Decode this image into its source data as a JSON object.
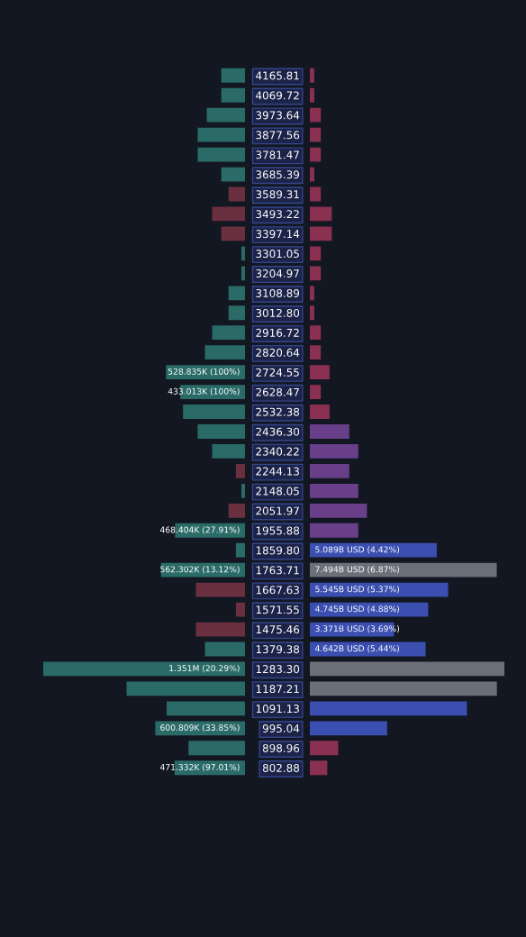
{
  "chart_data": [
    {
      "type": "bar",
      "orientation": "horizontal",
      "tick_labels": false,
      "categories": [
        "4165.81",
        "4069.72",
        "3973.64",
        "3877.56",
        "3781.47",
        "3685.39",
        "3589.31",
        "3493.22",
        "3397.14",
        "3301.05",
        "3204.97",
        "3108.89",
        "3012.80",
        "2916.72",
        "2820.64",
        "2724.55",
        "2628.47",
        "2532.38",
        "2436.30",
        "2340.22",
        "2244.13",
        "2148.05",
        "2051.97",
        "1955.88",
        "1859.80",
        "1763.71",
        "1667.63",
        "1571.55",
        "1475.46",
        "1379.38",
        "1283.30",
        "1187.21",
        "1091.13",
        "995.04",
        "898.96",
        "802.88"
      ],
      "values": [
        159000,
        159000,
        256000,
        317000,
        317000,
        159000,
        110000,
        220000,
        159000,
        24000,
        24000,
        110000,
        110000,
        220000,
        268000,
        528835,
        433013,
        415000,
        317000,
        220000,
        61000,
        24000,
        110000,
        468404,
        61000,
        562302,
        329000,
        61000,
        329000,
        268000,
        1351000,
        793000,
        525000,
        600809,
        378000,
        471332
      ],
      "colors": [
        "#2a6b68",
        "#2a6b68",
        "#2a6b68",
        "#2a6b68",
        "#2a6b68",
        "#2a6b68",
        "#6b3040",
        "#6b3040",
        "#6b3040",
        "#2a6b68",
        "#2a6b68",
        "#2a6b68",
        "#2a6b68",
        "#2a6b68",
        "#2a6b68",
        "#2a6b68",
        "#2a6b68",
        "#2a6b68",
        "#2a6b68",
        "#2a6b68",
        "#6b3040",
        "#2a6b68",
        "#6b3040",
        "#2a6b68",
        "#2a6b68",
        "#2a6b68",
        "#6b3040",
        "#6b3040",
        "#6b3040",
        "#2a6b68",
        "#2a6b68",
        "#2a6b68",
        "#2a6b68",
        "#2a6b68",
        "#2a6b68",
        "#2a6b68"
      ],
      "value_labels": [
        null,
        null,
        null,
        null,
        null,
        null,
        null,
        null,
        null,
        null,
        null,
        null,
        null,
        null,
        null,
        "528.835K (100%)",
        "433.013K (100%)",
        null,
        null,
        null,
        null,
        null,
        null,
        "468.404K (27.91%)",
        null,
        "562.302K (13.12%)",
        null,
        null,
        null,
        null,
        "1.351M (20.29%)",
        null,
        null,
        "600.809K (33.85%)",
        null,
        "471.332K (97.01%)"
      ]
    },
    {
      "type": "bar",
      "orientation": "horizontal",
      "tick_labels": "y",
      "categories": [
        "4165.81",
        "4069.72",
        "3973.64",
        "3877.56",
        "3781.47",
        "3685.39",
        "3589.31",
        "3493.22",
        "3397.14",
        "3301.05",
        "3204.97",
        "3108.89",
        "3012.80",
        "2916.72",
        "2820.64",
        "2724.55",
        "2628.47",
        "2532.38",
        "2436.30",
        "2340.22",
        "2244.13",
        "2148.05",
        "2051.97",
        "1955.88",
        "1859.80",
        "1763.71",
        "1667.63",
        "1571.55",
        "1475.46",
        "1379.38",
        "1283.30",
        "1187.21",
        "1091.13",
        "995.04",
        "898.96",
        "802.88"
      ],
      "values": [
        180000000.0,
        180000000.0,
        440000000.0,
        440000000.0,
        440000000.0,
        180000000.0,
        440000000.0,
        880000000.0,
        880000000.0,
        440000000.0,
        440000000.0,
        180000000.0,
        180000000.0,
        440000000.0,
        440000000.0,
        790000000.0,
        440000000.0,
        790000000.0,
        1580000000.0,
        1940000000.0,
        1580000000.0,
        1940000000.0,
        2290000000.0,
        1940000000.0,
        5089000000.0,
        7494000000.0,
        5545000000.0,
        4745000000.0,
        3371000000.0,
        4642000000.0,
        7800000000.0,
        7500000000.0,
        6300000000.0,
        3100000000.0,
        1140000000.0,
        700000000.0
      ],
      "colors": [
        "#8a3050",
        "#8a3050",
        "#8a3050",
        "#8a3050",
        "#8a3050",
        "#8a3050",
        "#8a3050",
        "#8a3050",
        "#8a3050",
        "#8a3050",
        "#8a3050",
        "#8a3050",
        "#8a3050",
        "#8a3050",
        "#8a3050",
        "#8a3050",
        "#8a3050",
        "#8a3050",
        "#6a3f8a",
        "#6a3f8a",
        "#6a3f8a",
        "#6a3f8a",
        "#6a3f8a",
        "#6a3f8a",
        "#3a4fb0",
        "#6b6f78",
        "#3a4fb0",
        "#3a4fb0",
        "#3a4fb0",
        "#3a4fb0",
        "#6b6f78",
        "#6b6f78",
        "#3a4fb0",
        "#3a4fb0",
        "#8a3050",
        "#8a3050"
      ],
      "value_labels": [
        null,
        null,
        null,
        null,
        null,
        null,
        null,
        null,
        null,
        null,
        null,
        null,
        null,
        null,
        null,
        null,
        null,
        null,
        null,
        null,
        null,
        null,
        null,
        null,
        "5.089B USD (4.42%)",
        "7.494B USD (6.87%)",
        "5.545B USD (5.37%)",
        "4.745B USD (4.88%)",
        "3.371B USD (3.69%)",
        "4.642B USD (5.44%)",
        null,
        null,
        null,
        null,
        null,
        null
      ]
    }
  ]
}
